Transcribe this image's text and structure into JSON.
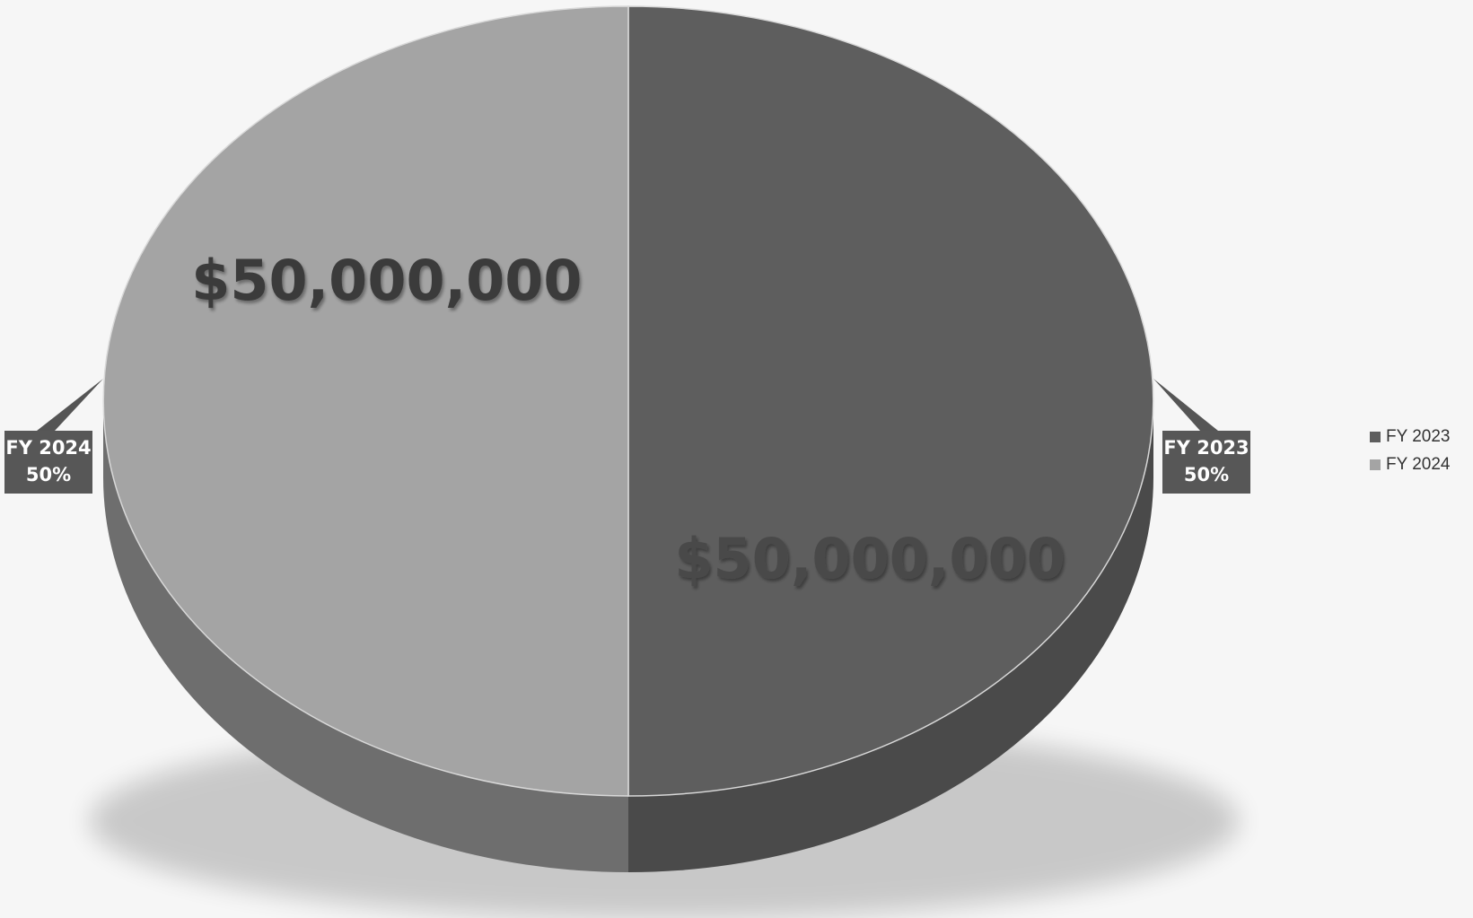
{
  "chart_data": {
    "type": "pie",
    "title": "",
    "slices": [
      {
        "label": "FY 2023",
        "value": 50000000,
        "percent_label": "50%",
        "value_label": "$50,000,000",
        "color": "#5e5e5e",
        "side_color": "#4a4a4a"
      },
      {
        "label": "FY 2024",
        "value": 50000000,
        "percent_label": "50%",
        "value_label": "$50,000,000",
        "color": "#a4a4a4",
        "side_color": "#6e6e6e"
      }
    ],
    "legend_position": "right",
    "style": "3D"
  }
}
